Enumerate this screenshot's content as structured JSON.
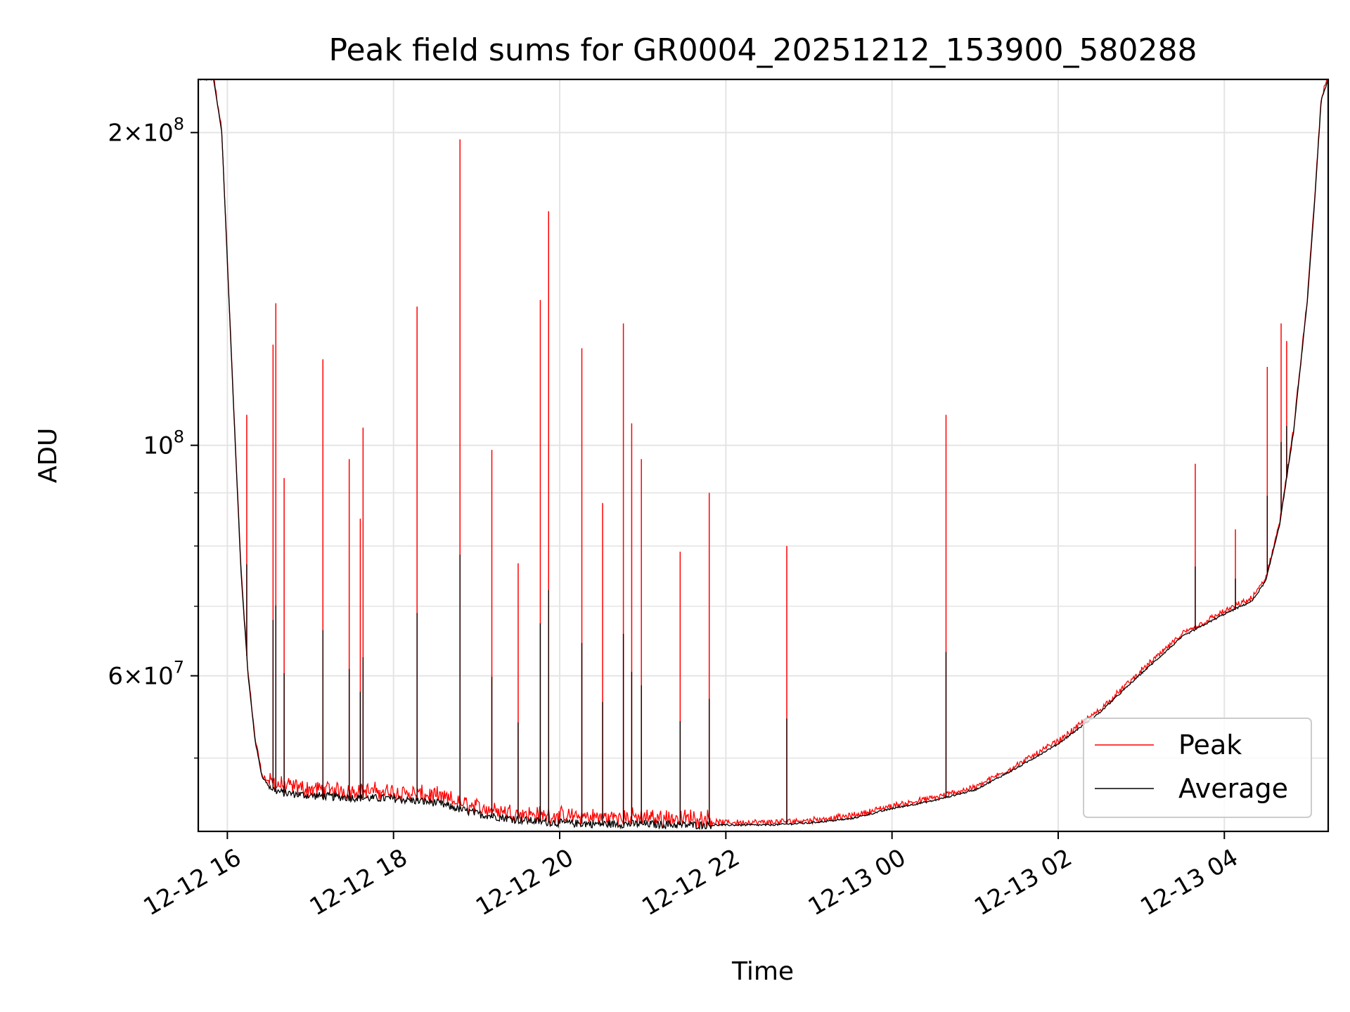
{
  "chart_data": {
    "type": "line",
    "title": "Peak field sums for GR0004_20251212_153900_580288",
    "xlabel": "Time",
    "ylabel": "ADU",
    "y_scale": "log",
    "grid": true,
    "legend_position": "bottom-right",
    "xlim": [
      "2025-12-12 15:39",
      "2025-12-13 05:15"
    ],
    "ylim": [
      42500000,
      225000000
    ],
    "x_ticks": [
      {
        "value": "2025-12-12 16:00",
        "label": "12-12 16"
      },
      {
        "value": "2025-12-12 18:00",
        "label": "12-12 18"
      },
      {
        "value": "2025-12-12 20:00",
        "label": "12-12 20"
      },
      {
        "value": "2025-12-12 22:00",
        "label": "12-12 22"
      },
      {
        "value": "2025-12-13 00:00",
        "label": "12-13 00"
      },
      {
        "value": "2025-12-13 02:00",
        "label": "12-13 02"
      },
      {
        "value": "2025-12-13 04:00",
        "label": "12-13 04"
      }
    ],
    "y_ticks_major": [
      {
        "value": 200000000,
        "mantissa": "2",
        "exponent": "8"
      },
      {
        "value": 100000000,
        "mantissa": "",
        "exponent": "8"
      },
      {
        "value": 60000000,
        "mantissa": "6",
        "exponent": "7"
      }
    ],
    "y_ticks_minor": [
      50000000,
      70000000,
      80000000,
      90000000
    ],
    "colors": {
      "peak": "#ff0000",
      "average": "#000000",
      "grid": "#e4e4e4"
    },
    "series": [
      {
        "name": "Average",
        "color": "#000000",
        "x": [
          "2025-12-12 15:39",
          "2025-12-12 15:50",
          "2025-12-12 15:56",
          "2025-12-12 16:00",
          "2025-12-12 16:05",
          "2025-12-12 16:10",
          "2025-12-12 16:15",
          "2025-12-12 16:20",
          "2025-12-12 16:25",
          "2025-12-12 16:30",
          "2025-12-12 16:35",
          "2025-12-12 16:40",
          "2025-12-12 17:00",
          "2025-12-12 17:30",
          "2025-12-12 18:00",
          "2025-12-12 18:30",
          "2025-12-12 19:00",
          "2025-12-12 19:30",
          "2025-12-12 20:00",
          "2025-12-12 20:30",
          "2025-12-12 21:00",
          "2025-12-12 21:30",
          "2025-12-12 22:00",
          "2025-12-12 22:30",
          "2025-12-12 23:00",
          "2025-12-12 23:30",
          "2025-12-13 00:00",
          "2025-12-13 00:30",
          "2025-12-13 01:00",
          "2025-12-13 01:30",
          "2025-12-13 02:00",
          "2025-12-13 02:30",
          "2025-12-13 03:00",
          "2025-12-13 03:30",
          "2025-12-13 04:00",
          "2025-12-13 04:20",
          "2025-12-13 04:30",
          "2025-12-13 04:40",
          "2025-12-13 04:50",
          "2025-12-13 05:00",
          "2025-12-13 05:05",
          "2025-12-13 05:10",
          "2025-12-13 05:15"
        ],
        "values": [
          225000000,
          225000000,
          200000000,
          150000000,
          105000000,
          75000000,
          60000000,
          52000000,
          48000000,
          47000000,
          46500000,
          46300000,
          46000000,
          45800000,
          45700000,
          45300000,
          44200000,
          43600000,
          43300000,
          43200000,
          43200000,
          43100000,
          43100000,
          43100000,
          43300000,
          43700000,
          44700000,
          45500000,
          46600000,
          48900000,
          51600000,
          55300000,
          60300000,
          65500000,
          68800000,
          70800000,
          74100000,
          84000000,
          103000000,
          138000000,
          170000000,
          215000000,
          225000000
        ]
      },
      {
        "name": "Peak",
        "color": "#ff0000",
        "spikes": [
          {
            "x": "2025-12-12 16:14",
            "value": 107000000
          },
          {
            "x": "2025-12-12 16:33",
            "value": 125000000
          },
          {
            "x": "2025-12-12 16:35",
            "value": 137000000
          },
          {
            "x": "2025-12-12 16:41",
            "value": 93000000
          },
          {
            "x": "2025-12-12 17:09",
            "value": 121000000
          },
          {
            "x": "2025-12-12 17:28",
            "value": 97000000
          },
          {
            "x": "2025-12-12 17:36",
            "value": 85000000
          },
          {
            "x": "2025-12-12 17:38",
            "value": 104000000
          },
          {
            "x": "2025-12-12 18:17",
            "value": 136000000
          },
          {
            "x": "2025-12-12 18:48",
            "value": 197000000
          },
          {
            "x": "2025-12-12 19:11",
            "value": 99000000
          },
          {
            "x": "2025-12-12 19:30",
            "value": 77000000
          },
          {
            "x": "2025-12-12 19:46",
            "value": 138000000
          },
          {
            "x": "2025-12-12 19:52",
            "value": 168000000
          },
          {
            "x": "2025-12-12 20:16",
            "value": 124000000
          },
          {
            "x": "2025-12-12 20:31",
            "value": 88000000
          },
          {
            "x": "2025-12-12 20:46",
            "value": 131000000
          },
          {
            "x": "2025-12-12 20:52",
            "value": 105000000
          },
          {
            "x": "2025-12-12 20:59",
            "value": 97000000
          },
          {
            "x": "2025-12-12 21:27",
            "value": 79000000
          },
          {
            "x": "2025-12-12 21:48",
            "value": 90000000
          },
          {
            "x": "2025-12-12 22:44",
            "value": 80000000
          },
          {
            "x": "2025-12-13 00:39",
            "value": 107000000
          },
          {
            "x": "2025-12-13 03:39",
            "value": 96000000
          },
          {
            "x": "2025-12-13 04:08",
            "value": 83000000
          },
          {
            "x": "2025-12-13 04:31",
            "value": 119000000
          },
          {
            "x": "2025-12-13 04:41",
            "value": 131000000
          },
          {
            "x": "2025-12-13 04:45",
            "value": 126000000
          }
        ]
      }
    ]
  }
}
